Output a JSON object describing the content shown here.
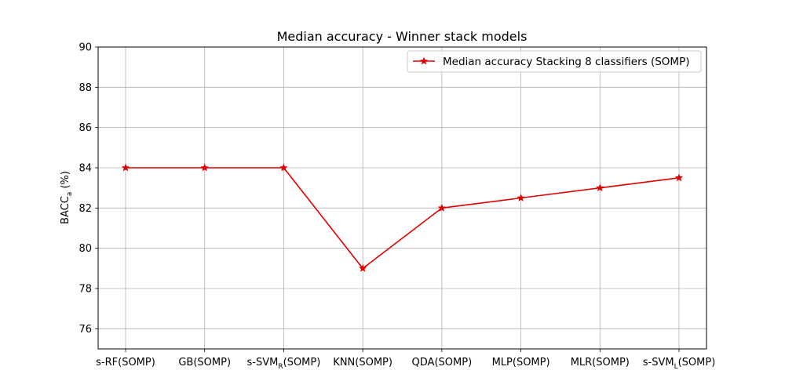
{
  "chart_data": {
    "type": "line",
    "title": "Median accuracy - Winner stack models",
    "xlabel": "",
    "ylabel": {
      "main": "BACC",
      "sub": "a",
      "suffix": " (%)"
    },
    "categories": [
      {
        "main": "s-RF(SOMP)",
        "sub": "",
        "suffix": ""
      },
      {
        "main": "GB(SOMP)",
        "sub": "",
        "suffix": ""
      },
      {
        "main": "s-SVM",
        "sub": "R",
        "suffix": "(SOMP)"
      },
      {
        "main": "KNN(SOMP)",
        "sub": "",
        "suffix": ""
      },
      {
        "main": "QDA(SOMP)",
        "sub": "",
        "suffix": ""
      },
      {
        "main": "MLP(SOMP)",
        "sub": "",
        "suffix": ""
      },
      {
        "main": "MLR(SOMP)",
        "sub": "",
        "suffix": ""
      },
      {
        "main": "s-SVM",
        "sub": "L",
        "suffix": "(SOMP)"
      }
    ],
    "series": [
      {
        "name": "Median accuracy Stacking 8 classifiers (SOMP)",
        "color": "#e00000",
        "marker": "star",
        "values": [
          84,
          84,
          84,
          79,
          82,
          82.5,
          83,
          83.5
        ]
      }
    ],
    "ylim": [
      75,
      90
    ],
    "yticks": [
      76,
      78,
      80,
      82,
      84,
      86,
      88,
      90
    ],
    "grid": true,
    "legend_position": "top-right"
  }
}
